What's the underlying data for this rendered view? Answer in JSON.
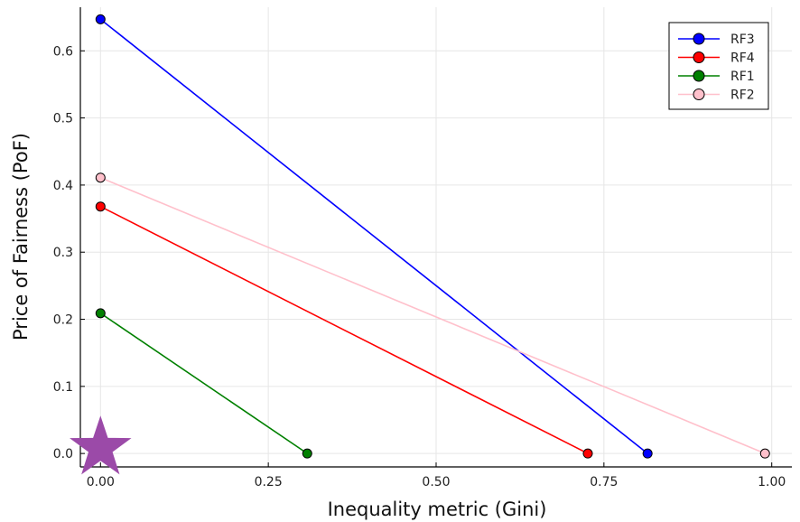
{
  "chart_data": {
    "type": "line",
    "xlabel": "Inequality metric (Gini)",
    "ylabel": "Price of Fairness (PoF)",
    "xlim": [
      -0.03,
      1.03
    ],
    "ylim": [
      -0.02,
      0.665
    ],
    "xticks": [
      0.0,
      0.25,
      0.5,
      0.75,
      1.0
    ],
    "xtick_labels": [
      "0.00",
      "0.25",
      "0.50",
      "0.75",
      "1.00"
    ],
    "yticks": [
      0.0,
      0.1,
      0.2,
      0.3,
      0.4,
      0.5,
      0.6
    ],
    "ytick_labels": [
      "0.0",
      "0.1",
      "0.2",
      "0.3",
      "0.4",
      "0.5",
      "0.6"
    ],
    "grid": true,
    "legend_position": "top-right",
    "series": [
      {
        "name": "RF3",
        "color": "#0000ff",
        "points": [
          [
            0.0,
            0.647
          ],
          [
            0.815,
            0.0
          ]
        ]
      },
      {
        "name": "RF4",
        "color": "#ff0000",
        "points": [
          [
            0.0,
            0.368
          ],
          [
            0.726,
            0.0
          ]
        ]
      },
      {
        "name": "RF1",
        "color": "#008000",
        "points": [
          [
            0.0,
            0.209
          ],
          [
            0.308,
            0.0
          ]
        ]
      },
      {
        "name": "RF2",
        "color": "#ffc0cb",
        "points": [
          [
            0.0,
            0.411
          ],
          [
            0.99,
            0.0
          ]
        ]
      }
    ],
    "marker_star": {
      "x": 0.0,
      "y": 0.008,
      "color": "#9b4aa8"
    }
  }
}
